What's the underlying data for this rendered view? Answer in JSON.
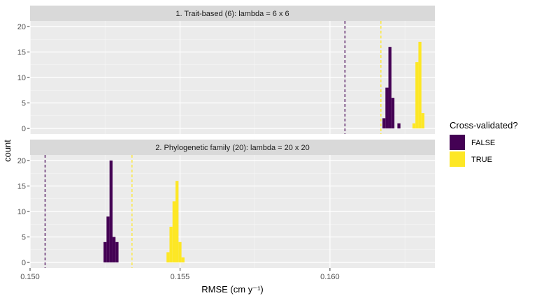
{
  "chart_data": {
    "type": "bar",
    "subtype": "faceted histogram",
    "xlabel": "RMSE (cm y⁻¹)",
    "ylabel": "count",
    "xlim": [
      0.15,
      0.1635
    ],
    "ylim": [
      0,
      20
    ],
    "x_ticks": [
      "0.150",
      "0.155",
      "0.160"
    ],
    "y_ticks": [
      "0",
      "5",
      "10",
      "15",
      "20"
    ],
    "grid": true,
    "bin_width": 0.0001,
    "legend": {
      "title": "Cross-validated?",
      "position": "right",
      "items": [
        {
          "label": "FALSE",
          "color": "#440154"
        },
        {
          "label": "TRUE",
          "color": "#FDE725"
        }
      ]
    },
    "panels": [
      {
        "strip_label": "1. Trait-based (6): lambda = 6 x 6",
        "series": [
          {
            "name": "FALSE",
            "color": "#440154",
            "bins": [
              [
                0.1618,
                2
              ],
              [
                0.1619,
                8
              ],
              [
                0.162,
                16
              ],
              [
                0.1621,
                6
              ],
              [
                0.1623,
                1
              ]
            ],
            "vline": 0.1605
          },
          {
            "name": "TRUE",
            "color": "#FDE725",
            "bins": [
              [
                0.1628,
                1
              ],
              [
                0.1629,
                13
              ],
              [
                0.163,
                17
              ],
              [
                0.1631,
                3
              ]
            ],
            "vline": 0.1617
          }
        ]
      },
      {
        "strip_label": "2. Phylogenetic family (20): lambda = 20 x 20",
        "series": [
          {
            "name": "FALSE",
            "color": "#440154",
            "bins": [
              [
                0.1525,
                4
              ],
              [
                0.1526,
                9
              ],
              [
                0.1527,
                20
              ],
              [
                0.1528,
                5
              ],
              [
                0.1529,
                4
              ]
            ],
            "vline": 0.1505
          },
          {
            "name": "TRUE",
            "color": "#FDE725",
            "bins": [
              [
                0.1546,
                2
              ],
              [
                0.1547,
                7
              ],
              [
                0.1548,
                12
              ],
              [
                0.1549,
                16
              ],
              [
                0.155,
                4
              ],
              [
                0.1551,
                1
              ]
            ],
            "vline": 0.1534
          }
        ]
      }
    ]
  }
}
